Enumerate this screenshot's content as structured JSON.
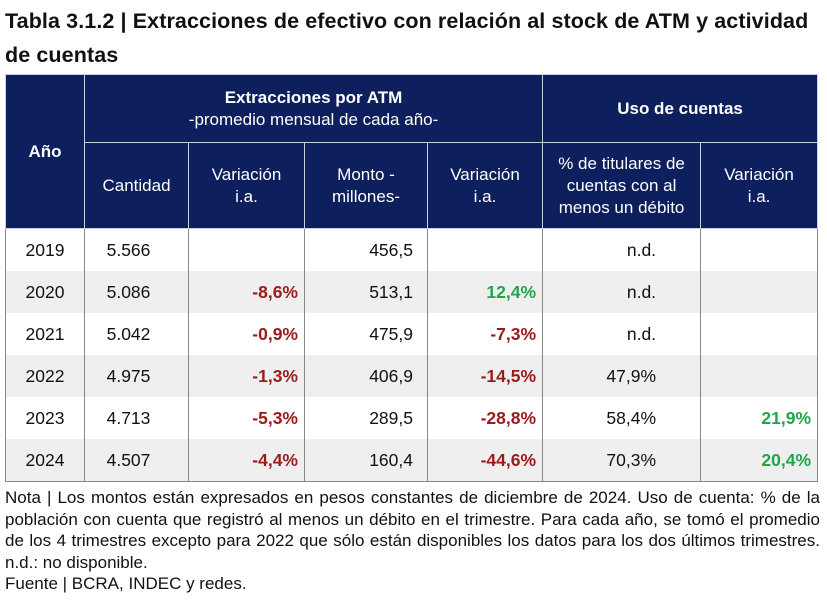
{
  "title": "Tabla 3.1.2 | Extracciones de efectivo con relación al stock de ATM y actividad de cuentas",
  "header": {
    "year": "Año",
    "group1_title": "Extracciones por ATM",
    "group1_sub": "-promedio mensual de cada año-",
    "group2_title": "Uso de cuentas",
    "cols": [
      "Cantidad",
      "Variación i.a.",
      "Monto -millones-",
      "Variación i.a.",
      "% de titulares de cuentas con al menos un débito",
      "Variación i.a."
    ]
  },
  "rows": [
    {
      "year": "2019",
      "cantidad": "5.566",
      "var1": "",
      "monto": "456,5",
      "var2": "",
      "pct": "n.d.",
      "var3": ""
    },
    {
      "year": "2020",
      "cantidad": "5.086",
      "var1": "-8,6%",
      "monto": "513,1",
      "var2": "12,4%",
      "pct": "n.d.",
      "var3": ""
    },
    {
      "year": "2021",
      "cantidad": "5.042",
      "var1": "-0,9%",
      "monto": "475,9",
      "var2": "-7,3%",
      "pct": "n.d.",
      "var3": ""
    },
    {
      "year": "2022",
      "cantidad": "4.975",
      "var1": "-1,3%",
      "monto": "406,9",
      "var2": "-14,5%",
      "pct": "47,9%",
      "var3": ""
    },
    {
      "year": "2023",
      "cantidad": "4.713",
      "var1": "-5,3%",
      "monto": "289,5",
      "var2": "-28,8%",
      "pct": "58,4%",
      "var3": "21,9%"
    },
    {
      "year": "2024",
      "cantidad": "4.507",
      "var1": "-4,4%",
      "monto": "160,4",
      "var2": "-44,6%",
      "pct": "70,3%",
      "var3": "20,4%"
    }
  ],
  "note": "Nota | Los montos están expresados en pesos constantes de diciembre de 2024. Uso de cuenta: % de la población con cuenta que registró al menos un débito en el trimestre. Para cada año, se tomó el promedio de los 4 trimestres excepto para 2022 que sólo están disponibles los datos para los dos últimos trimestres. n.d.: no disponible.",
  "source": "Fuente | BCRA, INDEC y redes.",
  "colors": {
    "header_bg": "#0d1f5c",
    "negative": "#9b1b1b",
    "positive": "#1fa64a"
  }
}
